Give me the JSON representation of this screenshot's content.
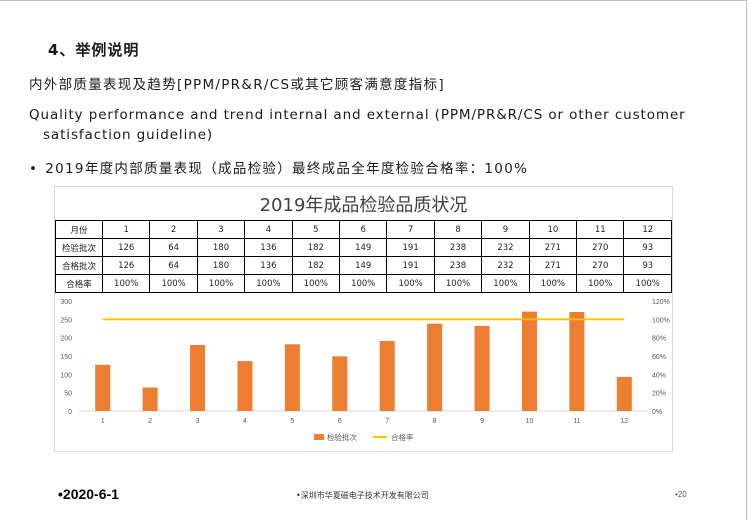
{
  "slide": {
    "heading": "4、举例说明",
    "line1": "内外部质量表现及趋势[PPM/PR&R/CS或其它顾客满意度指标]",
    "line2a": "Quality performance and trend internal and external (PPM/PR&R/CS or other customer",
    "line2b": "satisfaction guideline)",
    "bullet_mark": "•",
    "bullet_text": "2019年度内部质量表现（成品检验）最终成品全年度检验合格率：100%"
  },
  "table": {
    "rows": [
      [
        "月份",
        "1",
        "2",
        "3",
        "4",
        "5",
        "6",
        "7",
        "8",
        "9",
        "10",
        "11",
        "12"
      ],
      [
        "检验批次",
        "126",
        "64",
        "180",
        "136",
        "182",
        "149",
        "191",
        "238",
        "232",
        "271",
        "270",
        "93"
      ],
      [
        "合格批次",
        "126",
        "64",
        "180",
        "136",
        "182",
        "149",
        "191",
        "238",
        "232",
        "271",
        "270",
        "93"
      ],
      [
        "合格率",
        "100%",
        "100%",
        "100%",
        "100%",
        "100%",
        "100%",
        "100%",
        "100%",
        "100%",
        "100%",
        "100%",
        "100%"
      ]
    ]
  },
  "chart_data": {
    "type": "bar",
    "title": "2019年成品检验品质状况",
    "categories": [
      "1",
      "2",
      "3",
      "4",
      "5",
      "6",
      "7",
      "8",
      "9",
      "10",
      "11",
      "12"
    ],
    "series": [
      {
        "name": "检验批次",
        "type": "bar",
        "axis": "left",
        "color": "#ED7D31",
        "values": [
          126,
          64,
          180,
          136,
          182,
          149,
          191,
          238,
          232,
          271,
          270,
          93
        ]
      },
      {
        "name": "合格率",
        "type": "line",
        "axis": "right",
        "color": "#FFC000",
        "values": [
          1,
          1,
          1,
          1,
          1,
          1,
          1,
          1,
          1,
          1,
          1,
          1
        ]
      }
    ],
    "ylim": [
      0,
      300
    ],
    "yticks": [
      "0",
      "50",
      "100",
      "150",
      "200",
      "250",
      "300"
    ],
    "y2lim": [
      0,
      1.2
    ],
    "y2ticks": [
      "0%",
      "20%",
      "40%",
      "60%",
      "80%",
      "100%",
      "120%"
    ],
    "legend": "bottom",
    "grid": false
  },
  "footer": {
    "date": "•2020-6-1",
    "company": "•深圳市华夏磁电子技术开发有限公司",
    "page": "•20"
  }
}
